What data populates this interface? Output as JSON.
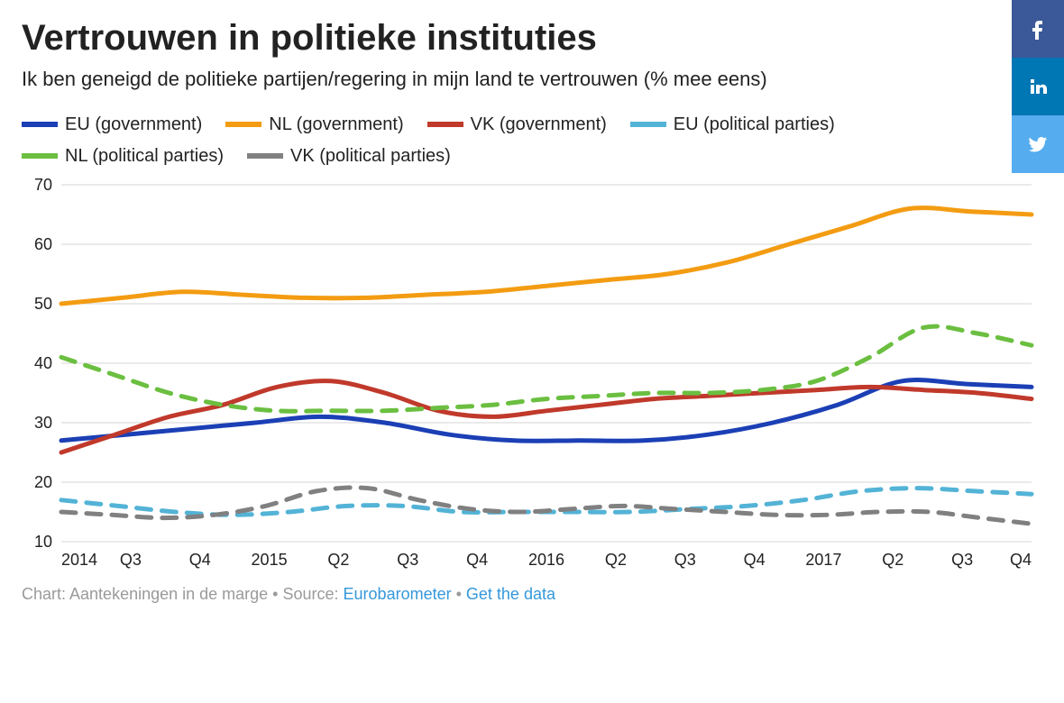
{
  "title": "Vertrouwen in politieke instituties",
  "subtitle": "Ik ben geneigd de politieke partijen/regering in mijn land te vertrouwen (% mee eens)",
  "footer": {
    "prefix": "Chart: Aantekeningen in de marge • Source: ",
    "source_label": "Eurobarometer",
    "sep": " • ",
    "get_data_label": "Get the data"
  },
  "social": [
    {
      "name": "facebook",
      "bg": "#3b5998"
    },
    {
      "name": "linkedin",
      "bg": "#0077b5"
    },
    {
      "name": "twitter",
      "bg": "#55acee"
    }
  ],
  "chart": {
    "type": "line",
    "background_color": "#ffffff",
    "grid_color": "#d6d6d6",
    "axis_font_size": 18,
    "title_font_size": 40,
    "subtitle_font_size": 22,
    "legend_font_size": 20,
    "line_width": 5,
    "ylim": [
      10,
      70
    ],
    "ytick_step": 10,
    "yticks": [
      10,
      20,
      30,
      40,
      50,
      60,
      70
    ],
    "x_labels": [
      "2014",
      "Q3",
      "Q4",
      "2015",
      "Q2",
      "Q3",
      "Q4",
      "2016",
      "Q2",
      "Q3",
      "Q4",
      "2017",
      "Q2",
      "Q3",
      "Q4"
    ],
    "curve_smoothing": "spline",
    "series": [
      {
        "id": "eu_gov",
        "label": "EU (government)",
        "color": "#1b3fb5",
        "dashed": false,
        "values": [
          27,
          28,
          29,
          30,
          31,
          30,
          28,
          27,
          27,
          27,
          28,
          30,
          33,
          37,
          36.5,
          36
        ]
      },
      {
        "id": "nl_gov",
        "label": "NL (government)",
        "color": "#f39c12",
        "dashed": false,
        "values": [
          50,
          51,
          52,
          51.5,
          51,
          51,
          51.5,
          52,
          53,
          54,
          55,
          57,
          60,
          63,
          66,
          65.5,
          65
        ]
      },
      {
        "id": "vk_gov",
        "label": "VK (government)",
        "color": "#c0392b",
        "dashed": false,
        "values": [
          25,
          28,
          31,
          33,
          36,
          37,
          35,
          32,
          31,
          32,
          33,
          34,
          34.5,
          35,
          35.5,
          36,
          35.5,
          35,
          34
        ]
      },
      {
        "id": "eu_pp",
        "label": "EU (political parties)",
        "color": "#53b3d6",
        "dashed": true,
        "values": [
          17,
          16,
          15,
          14.5,
          15,
          16,
          16,
          15,
          15,
          15,
          15,
          15.5,
          16,
          17,
          18.5,
          19,
          18.5,
          18
        ]
      },
      {
        "id": "nl_pp",
        "label": "NL (political parties)",
        "color": "#6bbf40",
        "dashed": true,
        "values": [
          41,
          38,
          35,
          33,
          32,
          32,
          32,
          32.5,
          33,
          34,
          34.5,
          35,
          35,
          35.5,
          37,
          41,
          46,
          45,
          43
        ]
      },
      {
        "id": "vk_pp",
        "label": "VK (political parties)",
        "color": "#808080",
        "dashed": true,
        "values": [
          15,
          14.5,
          14,
          14.5,
          16,
          18.5,
          19,
          17,
          15.5,
          15,
          15.5,
          16,
          15.5,
          15,
          14.5,
          14.5,
          15,
          15,
          14,
          13
        ]
      }
    ]
  }
}
